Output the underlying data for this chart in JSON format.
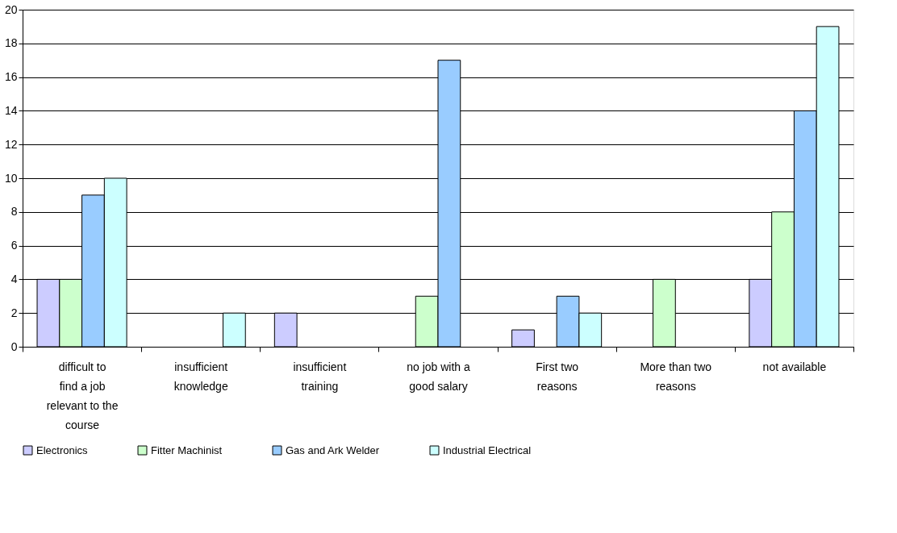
{
  "chart_data": {
    "type": "bar",
    "categories": [
      "difficult to find a job relevant to the course",
      "insufficient knowledge",
      "insufficient training",
      "no job with a good salary",
      "First two reasons",
      "More than two reasons",
      "not available"
    ],
    "series": [
      {
        "name": "Electronics",
        "color": "#ccccff",
        "values": [
          4,
          null,
          2,
          null,
          1,
          null,
          4
        ]
      },
      {
        "name": "Fitter Machinist",
        "color": "#ccffcc",
        "values": [
          4,
          null,
          null,
          3,
          null,
          4,
          8
        ]
      },
      {
        "name": "Gas and Ark Welder",
        "color": "#99ccff",
        "values": [
          9,
          null,
          null,
          17,
          3,
          null,
          14
        ]
      },
      {
        "name": "Industrial Electrical",
        "color": "#ccffff",
        "values": [
          10,
          2,
          null,
          null,
          2,
          null,
          19
        ]
      }
    ],
    "ylim": [
      0,
      20
    ],
    "yticks": [
      0,
      2,
      4,
      6,
      8,
      10,
      12,
      14,
      16,
      18,
      20
    ],
    "grid": "y",
    "legend": "bottom"
  }
}
